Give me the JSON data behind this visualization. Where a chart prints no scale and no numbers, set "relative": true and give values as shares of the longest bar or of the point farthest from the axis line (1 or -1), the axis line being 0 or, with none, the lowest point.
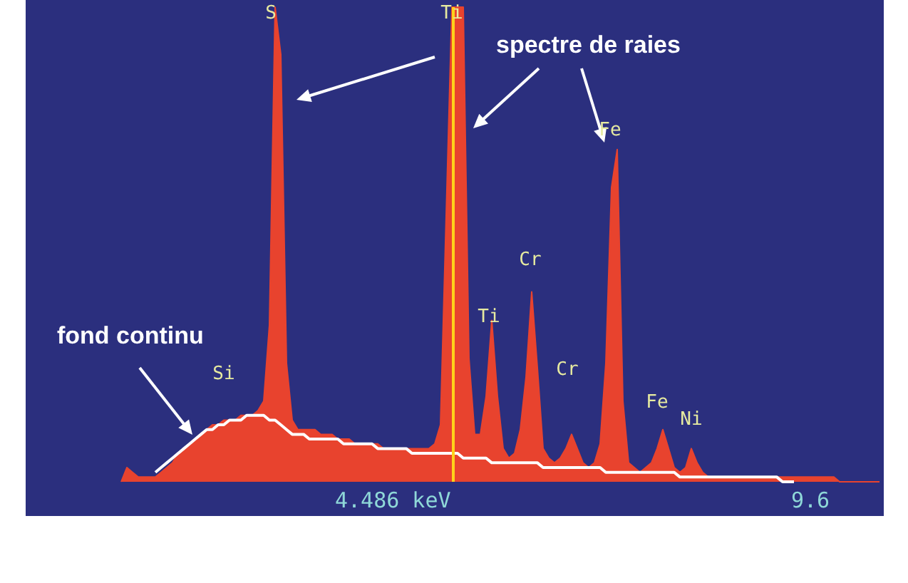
{
  "chart_data": {
    "type": "area",
    "relative": true,
    "marker": "none",
    "categories": [
      null,
      null,
      null,
      null,
      null,
      null,
      null,
      null,
      null,
      null,
      null,
      null,
      null,
      null,
      null,
      null,
      null,
      null,
      null,
      null,
      null,
      null,
      null,
      null,
      null,
      null,
      null,
      null,
      null,
      null,
      null,
      null,
      null,
      null,
      null,
      null,
      null,
      null,
      null,
      null,
      null,
      null,
      null,
      null,
      null,
      null,
      null,
      null,
      null,
      null,
      null,
      null,
      null,
      null,
      null,
      null,
      null,
      null,
      null,
      null,
      null,
      null,
      null,
      null,
      null,
      null,
      null,
      null,
      null,
      null,
      null,
      null,
      null,
      null,
      null,
      null,
      null,
      null,
      null,
      null,
      null,
      null,
      null,
      null,
      null,
      null,
      null,
      null,
      null,
      null,
      null,
      null,
      null,
      null,
      null,
      null,
      null,
      null,
      null,
      null,
      null,
      null,
      null,
      null,
      null,
      null,
      null,
      null,
      null,
      null,
      null,
      null,
      null,
      null,
      null,
      null,
      null,
      null,
      null,
      null,
      null,
      null,
      null,
      null,
      null,
      null,
      null,
      null,
      null,
      null,
      null,
      null,
      null,
      null
    ],
    "series": [
      {
        "type": "area",
        "color": "#e8432e",
        "values": [
          0,
          0.03,
          0.02,
          0.01,
          0.01,
          0.01,
          0.01,
          0.02,
          0.03,
          0.04,
          0.06,
          0.07,
          0.08,
          0.09,
          0.1,
          0.11,
          0.12,
          0.12,
          0.13,
          0.13,
          0.13,
          0.14,
          0.14,
          0.14,
          0.15,
          0.17,
          0.33,
          1,
          0.9,
          0.25,
          0.13,
          0.11,
          0.11,
          0.11,
          0.11,
          0.1,
          0.1,
          0.1,
          0.09,
          0.09,
          0.09,
          0.08,
          0.08,
          0.08,
          0.08,
          0.08,
          0.07,
          0.07,
          0.07,
          0.07,
          0.07,
          0.07,
          0.07,
          0.07,
          0.07,
          0.08,
          0.12,
          0.56,
          1,
          1,
          1,
          0.26,
          0.1,
          0.1,
          0.18,
          0.34,
          0.18,
          0.07,
          0.05,
          0.06,
          0.11,
          0.22,
          0.4,
          0.24,
          0.07,
          0.05,
          0.04,
          0.05,
          0.07,
          0.1,
          0.07,
          0.04,
          0.03,
          0.04,
          0.08,
          0.25,
          0.62,
          0.7,
          0.17,
          0.04,
          0.03,
          0.02,
          0.03,
          0.04,
          0.07,
          0.11,
          0.07,
          0.03,
          0.02,
          0.03,
          0.07,
          0.04,
          0.02,
          0.01,
          0.01,
          0.01,
          0.01,
          0.01,
          0.01,
          0.01,
          0.01,
          0.01,
          0.01,
          0.01,
          0.01,
          0.01,
          0.01,
          0.01,
          0.01,
          0.01,
          0.01,
          0.01,
          0.01,
          0.01,
          0.01,
          0.01,
          0,
          0,
          0,
          0,
          0,
          0,
          0,
          0
        ]
      },
      {
        "type": "line",
        "color": "#ffffff",
        "values": [
          null,
          null,
          null,
          null,
          null,
          null,
          0.02,
          0.03,
          0.04,
          0.05,
          0.06,
          0.07,
          0.08,
          0.09,
          0.1,
          0.11,
          0.11,
          0.12,
          0.12,
          0.13,
          0.13,
          0.13,
          0.14,
          0.14,
          0.14,
          0.14,
          0.13,
          0.13,
          0.12,
          0.11,
          0.1,
          0.1,
          0.1,
          0.09,
          0.09,
          0.09,
          0.09,
          0.09,
          0.09,
          0.08,
          0.08,
          0.08,
          0.08,
          0.08,
          0.08,
          0.07,
          0.07,
          0.07,
          0.07,
          0.07,
          0.07,
          0.06,
          0.06,
          0.06,
          0.06,
          0.06,
          0.06,
          0.06,
          0.06,
          0.06,
          0.05,
          0.05,
          0.05,
          0.05,
          0.05,
          0.04,
          0.04,
          0.04,
          0.04,
          0.04,
          0.04,
          0.04,
          0.04,
          0.04,
          0.03,
          0.03,
          0.03,
          0.03,
          0.03,
          0.03,
          0.03,
          0.03,
          0.03,
          0.03,
          0.03,
          0.02,
          0.02,
          0.02,
          0.02,
          0.02,
          0.02,
          0.02,
          0.02,
          0.02,
          0.02,
          0.02,
          0.02,
          0.02,
          0.01,
          0.01,
          0.01,
          0.01,
          0.01,
          0.01,
          0.01,
          0.01,
          0.01,
          0.01,
          0.01,
          0.01,
          0.01,
          0.01,
          0.01,
          0.01,
          0.01,
          0.01,
          0,
          0,
          0,
          null,
          null,
          null,
          null,
          null,
          null,
          null,
          null,
          null,
          null,
          null,
          null,
          null,
          null,
          null
        ]
      }
    ],
    "annotations": [
      "spectre de raies",
      "fond continu",
      "4.486 keV",
      "9.6",
      "S",
      "Ti",
      "Si",
      "Ti",
      "Cr",
      "Cr",
      "Fe",
      "Fe",
      "Ni"
    ]
  }
}
